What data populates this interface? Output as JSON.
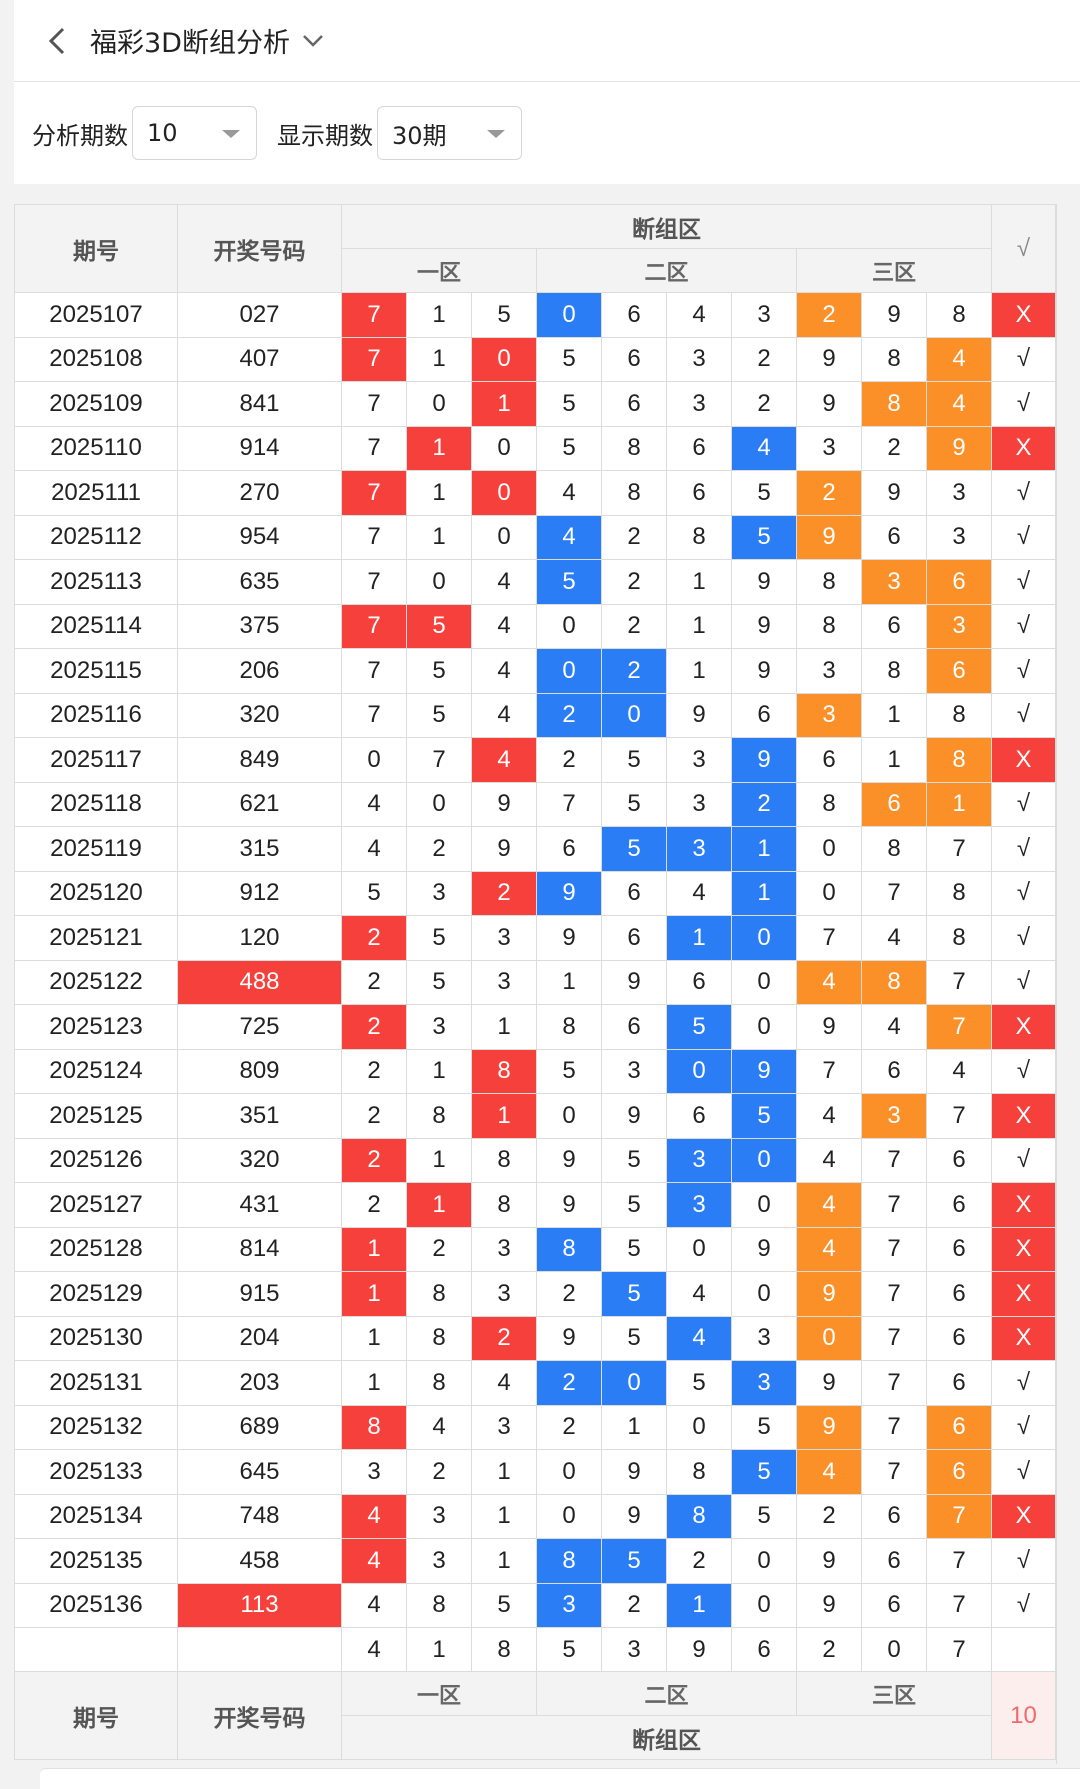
{
  "header": {
    "title": "福彩3D断组分析"
  },
  "filters": {
    "analysis_label": "分析期数",
    "analysis_value": "10",
    "display_label": "显示期数",
    "display_value": "30期"
  },
  "table": {
    "col_period": "期号",
    "col_number": "开奖号码",
    "col_zone": "断组区",
    "col_check": "√",
    "zones": [
      "一区",
      "二区",
      "三区"
    ],
    "rows": [
      {
        "period": "2025107",
        "number": "027",
        "cells": [
          "7",
          "1",
          "5",
          "0",
          "6",
          "4",
          "3",
          "2",
          "9",
          "8"
        ],
        "colors": [
          "r",
          "",
          "",
          "b",
          "",
          "",
          "",
          "o",
          "",
          ""
        ],
        "check": "X"
      },
      {
        "period": "2025108",
        "number": "407",
        "cells": [
          "7",
          "1",
          "0",
          "5",
          "6",
          "3",
          "2",
          "9",
          "8",
          "4"
        ],
        "colors": [
          "r",
          "",
          "r",
          "",
          "",
          "",
          "",
          "",
          "",
          "o"
        ],
        "check": "√"
      },
      {
        "period": "2025109",
        "number": "841",
        "cells": [
          "7",
          "0",
          "1",
          "5",
          "6",
          "3",
          "2",
          "9",
          "8",
          "4"
        ],
        "colors": [
          "",
          "",
          "r",
          "",
          "",
          "",
          "",
          "",
          "o",
          "o"
        ],
        "check": "√"
      },
      {
        "period": "2025110",
        "number": "914",
        "cells": [
          "7",
          "1",
          "0",
          "5",
          "8",
          "6",
          "4",
          "3",
          "2",
          "9"
        ],
        "colors": [
          "",
          "r",
          "",
          "",
          "",
          "",
          "b",
          "",
          "",
          "o"
        ],
        "check": "X"
      },
      {
        "period": "2025111",
        "number": "270",
        "cells": [
          "7",
          "1",
          "0",
          "4",
          "8",
          "6",
          "5",
          "2",
          "9",
          "3"
        ],
        "colors": [
          "r",
          "",
          "r",
          "",
          "",
          "",
          "",
          "o",
          "",
          ""
        ],
        "check": "√"
      },
      {
        "period": "2025112",
        "number": "954",
        "cells": [
          "7",
          "1",
          "0",
          "4",
          "2",
          "8",
          "5",
          "9",
          "6",
          "3"
        ],
        "colors": [
          "",
          "",
          "",
          "b",
          "",
          "",
          "b",
          "o",
          "",
          ""
        ],
        "check": "√"
      },
      {
        "period": "2025113",
        "number": "635",
        "cells": [
          "7",
          "0",
          "4",
          "5",
          "2",
          "1",
          "9",
          "8",
          "3",
          "6"
        ],
        "colors": [
          "",
          "",
          "",
          "b",
          "",
          "",
          "",
          "",
          "o",
          "o"
        ],
        "check": "√"
      },
      {
        "period": "2025114",
        "number": "375",
        "cells": [
          "7",
          "5",
          "4",
          "0",
          "2",
          "1",
          "9",
          "8",
          "6",
          "3"
        ],
        "colors": [
          "r",
          "r",
          "",
          "",
          "",
          "",
          "",
          "",
          "",
          "o"
        ],
        "check": "√"
      },
      {
        "period": "2025115",
        "number": "206",
        "cells": [
          "7",
          "5",
          "4",
          "0",
          "2",
          "1",
          "9",
          "3",
          "8",
          "6"
        ],
        "colors": [
          "",
          "",
          "",
          "b",
          "b",
          "",
          "",
          "",
          "",
          "o"
        ],
        "check": "√"
      },
      {
        "period": "2025116",
        "number": "320",
        "cells": [
          "7",
          "5",
          "4",
          "2",
          "0",
          "9",
          "6",
          "3",
          "1",
          "8"
        ],
        "colors": [
          "",
          "",
          "",
          "b",
          "b",
          "",
          "",
          "o",
          "",
          ""
        ],
        "check": "√"
      },
      {
        "period": "2025117",
        "number": "849",
        "cells": [
          "0",
          "7",
          "4",
          "2",
          "5",
          "3",
          "9",
          "6",
          "1",
          "8"
        ],
        "colors": [
          "",
          "",
          "r",
          "",
          "",
          "",
          "b",
          "",
          "",
          "o"
        ],
        "check": "X"
      },
      {
        "period": "2025118",
        "number": "621",
        "cells": [
          "4",
          "0",
          "9",
          "7",
          "5",
          "3",
          "2",
          "8",
          "6",
          "1"
        ],
        "colors": [
          "",
          "",
          "",
          "",
          "",
          "",
          "b",
          "",
          "o",
          "o"
        ],
        "check": "√"
      },
      {
        "period": "2025119",
        "number": "315",
        "cells": [
          "4",
          "2",
          "9",
          "6",
          "5",
          "3",
          "1",
          "0",
          "8",
          "7"
        ],
        "colors": [
          "",
          "",
          "",
          "",
          "b",
          "b",
          "b",
          "",
          "",
          ""
        ],
        "check": "√"
      },
      {
        "period": "2025120",
        "number": "912",
        "cells": [
          "5",
          "3",
          "2",
          "9",
          "6",
          "4",
          "1",
          "0",
          "7",
          "8"
        ],
        "colors": [
          "",
          "",
          "r",
          "b",
          "",
          "",
          "b",
          "",
          "",
          ""
        ],
        "check": "√"
      },
      {
        "period": "2025121",
        "number": "120",
        "cells": [
          "2",
          "5",
          "3",
          "9",
          "6",
          "1",
          "0",
          "7",
          "4",
          "8"
        ],
        "colors": [
          "r",
          "",
          "",
          "",
          "",
          "b",
          "b",
          "",
          "",
          ""
        ],
        "check": "√"
      },
      {
        "period": "2025122",
        "number": "488",
        "cells": [
          "2",
          "5",
          "3",
          "1",
          "9",
          "6",
          "0",
          "4",
          "8",
          "7"
        ],
        "colors": [
          "",
          "",
          "",
          "",
          "",
          "",
          "",
          "o",
          "o",
          ""
        ],
        "check": "√",
        "hot": true
      },
      {
        "period": "2025123",
        "number": "725",
        "cells": [
          "2",
          "3",
          "1",
          "8",
          "6",
          "5",
          "0",
          "9",
          "4",
          "7"
        ],
        "colors": [
          "r",
          "",
          "",
          "",
          "",
          "b",
          "",
          "",
          "",
          "o"
        ],
        "check": "X"
      },
      {
        "period": "2025124",
        "number": "809",
        "cells": [
          "2",
          "1",
          "8",
          "5",
          "3",
          "0",
          "9",
          "7",
          "6",
          "4"
        ],
        "colors": [
          "",
          "",
          "r",
          "",
          "",
          "b",
          "b",
          "",
          "",
          ""
        ],
        "check": "√"
      },
      {
        "period": "2025125",
        "number": "351",
        "cells": [
          "2",
          "8",
          "1",
          "0",
          "9",
          "6",
          "5",
          "4",
          "3",
          "7"
        ],
        "colors": [
          "",
          "",
          "r",
          "",
          "",
          "",
          "b",
          "",
          "o",
          ""
        ],
        "check": "X"
      },
      {
        "period": "2025126",
        "number": "320",
        "cells": [
          "2",
          "1",
          "8",
          "9",
          "5",
          "3",
          "0",
          "4",
          "7",
          "6"
        ],
        "colors": [
          "r",
          "",
          "",
          "",
          "",
          "b",
          "b",
          "",
          "",
          ""
        ],
        "check": "√"
      },
      {
        "period": "2025127",
        "number": "431",
        "cells": [
          "2",
          "1",
          "8",
          "9",
          "5",
          "3",
          "0",
          "4",
          "7",
          "6"
        ],
        "colors": [
          "",
          "r",
          "",
          "",
          "",
          "b",
          "",
          "o",
          "",
          ""
        ],
        "check": "X"
      },
      {
        "period": "2025128",
        "number": "814",
        "cells": [
          "1",
          "2",
          "3",
          "8",
          "5",
          "0",
          "9",
          "4",
          "7",
          "6"
        ],
        "colors": [
          "r",
          "",
          "",
          "b",
          "",
          "",
          "",
          "o",
          "",
          ""
        ],
        "check": "X"
      },
      {
        "period": "2025129",
        "number": "915",
        "cells": [
          "1",
          "8",
          "3",
          "2",
          "5",
          "4",
          "0",
          "9",
          "7",
          "6"
        ],
        "colors": [
          "r",
          "",
          "",
          "",
          "b",
          "",
          "",
          "o",
          "",
          ""
        ],
        "check": "X"
      },
      {
        "period": "2025130",
        "number": "204",
        "cells": [
          "1",
          "8",
          "2",
          "9",
          "5",
          "4",
          "3",
          "0",
          "7",
          "6"
        ],
        "colors": [
          "",
          "",
          "r",
          "",
          "",
          "b",
          "",
          "o",
          "",
          ""
        ],
        "check": "X"
      },
      {
        "period": "2025131",
        "number": "203",
        "cells": [
          "1",
          "8",
          "4",
          "2",
          "0",
          "5",
          "3",
          "9",
          "7",
          "6"
        ],
        "colors": [
          "",
          "",
          "",
          "b",
          "b",
          "",
          "b",
          "",
          "",
          ""
        ],
        "check": "√"
      },
      {
        "period": "2025132",
        "number": "689",
        "cells": [
          "8",
          "4",
          "3",
          "2",
          "1",
          "0",
          "5",
          "9",
          "7",
          "6"
        ],
        "colors": [
          "r",
          "",
          "",
          "",
          "",
          "",
          "",
          "o",
          "",
          "o"
        ],
        "check": "√"
      },
      {
        "period": "2025133",
        "number": "645",
        "cells": [
          "3",
          "2",
          "1",
          "0",
          "9",
          "8",
          "5",
          "4",
          "7",
          "6"
        ],
        "colors": [
          "",
          "",
          "",
          "",
          "",
          "",
          "b",
          "o",
          "",
          "o"
        ],
        "check": "√"
      },
      {
        "period": "2025134",
        "number": "748",
        "cells": [
          "4",
          "3",
          "1",
          "0",
          "9",
          "8",
          "5",
          "2",
          "6",
          "7"
        ],
        "colors": [
          "r",
          "",
          "",
          "",
          "",
          "b",
          "",
          "",
          "",
          "o"
        ],
        "check": "X"
      },
      {
        "period": "2025135",
        "number": "458",
        "cells": [
          "4",
          "3",
          "1",
          "8",
          "5",
          "2",
          "0",
          "9",
          "6",
          "7"
        ],
        "colors": [
          "r",
          "",
          "",
          "b",
          "b",
          "",
          "",
          "",
          "",
          ""
        ],
        "check": "√"
      },
      {
        "period": "2025136",
        "number": "113",
        "cells": [
          "4",
          "8",
          "5",
          "3",
          "2",
          "1",
          "0",
          "9",
          "6",
          "7"
        ],
        "colors": [
          "",
          "",
          "",
          "b",
          "",
          "b",
          "",
          "",
          "",
          ""
        ],
        "check": "√",
        "hot": true
      }
    ],
    "next_row": [
      "4",
      "1",
      "8",
      "5",
      "3",
      "9",
      "6",
      "2",
      "0",
      "7"
    ],
    "footer_count": "10"
  },
  "colors": {
    "red": "#f6403c",
    "blue": "#2a7df5",
    "orange": "#fb8f28"
  }
}
